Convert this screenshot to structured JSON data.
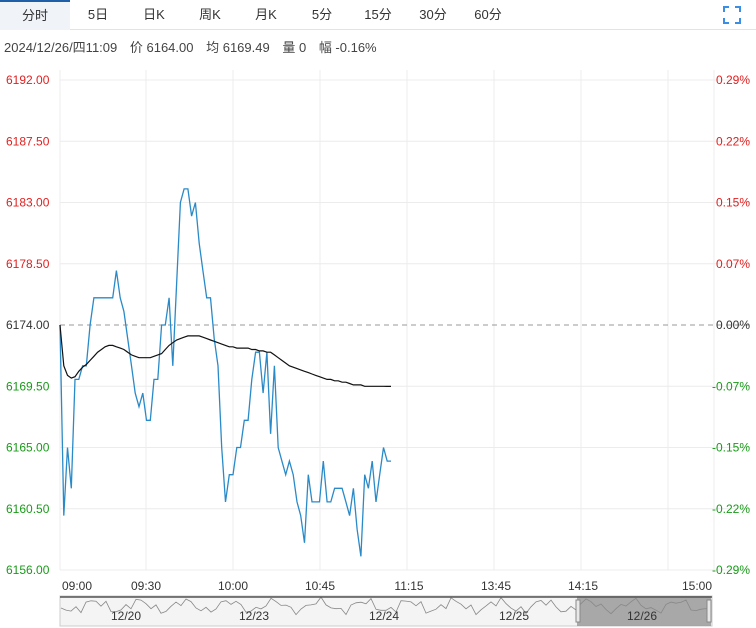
{
  "tabs": [
    {
      "label": "分时",
      "active": true
    },
    {
      "label": "5日"
    },
    {
      "label": "日K"
    },
    {
      "label": "周K"
    },
    {
      "label": "月K"
    },
    {
      "label": "5分"
    },
    {
      "label": "15分"
    },
    {
      "label": "30分"
    },
    {
      "label": "60分"
    }
  ],
  "fullscreen_icon": "fullscreen-icon",
  "info": {
    "datetime": "2024/12/26/四11:09",
    "price": "价 6164.00",
    "avg": "均 6169.49",
    "volume": "量 0",
    "change": "幅 -0.16%"
  },
  "colors": {
    "up": "#e02020",
    "down": "#1a9a1a",
    "price_line": "#2a8ac8",
    "avg_line": "#111111",
    "grid": "#ececec",
    "baseline": "#999999"
  },
  "chart_data": {
    "type": "line",
    "title": "",
    "ylim": [
      6156.0,
      6192.0
    ],
    "base_price": 6174.0,
    "yticks": [
      "6192.00",
      "6187.50",
      "6183.00",
      "6178.50",
      "6174.00",
      "6169.50",
      "6165.00",
      "6160.50",
      "6156.00"
    ],
    "yticks_pct": [
      "0.29%",
      "0.22%",
      "0.15%",
      "0.07%",
      "0.00%",
      "-0.07%",
      "-0.15%",
      "-0.22%",
      "-0.29%"
    ],
    "xticks": [
      "09:00",
      "09:30",
      "10:00",
      "10:45",
      "11:15",
      "13:45",
      "14:15",
      "15:00"
    ],
    "grid": true,
    "series": [
      {
        "key": "price",
        "values": [
          6174,
          6160,
          6165,
          6162,
          6170,
          6170,
          6171,
          6171,
          6174,
          6176,
          6176,
          6176,
          6176,
          6176,
          6176,
          6178,
          6176,
          6175,
          6173,
          6171,
          6169,
          6168,
          6169,
          6167,
          6167,
          6170,
          6170,
          6174,
          6174,
          6176,
          6171,
          6177,
          6183,
          6184,
          6184,
          6182,
          6183,
          6180,
          6178,
          6176,
          6176,
          6173,
          6171,
          6165,
          6161,
          6163,
          6163,
          6165,
          6165,
          6167,
          6167,
          6170,
          6172,
          6172,
          6169,
          6172,
          6166,
          6171,
          6165,
          6164,
          6163,
          6164,
          6163,
          6161,
          6160,
          6158,
          6163,
          6161,
          6161,
          6161,
          6164,
          6161,
          6161,
          6162,
          6162,
          6162,
          6161,
          6160,
          6162,
          6159,
          6157,
          6163,
          6162,
          6164,
          6161,
          6163,
          6165,
          6164,
          6164
        ]
      },
      {
        "key": "avg",
        "values": [
          6174,
          6171,
          6170.3,
          6170.1,
          6170.2,
          6170.6,
          6170.9,
          6171.1,
          6171.4,
          6171.7,
          6172,
          6172.2,
          6172.4,
          6172.5,
          6172.5,
          6172.4,
          6172.3,
          6172.2,
          6172,
          6171.8,
          6171.7,
          6171.6,
          6171.6,
          6171.6,
          6171.6,
          6171.7,
          6171.8,
          6171.9,
          6172.2,
          6172.5,
          6172.7,
          6172.9,
          6173,
          6173.1,
          6173.2,
          6173.2,
          6173.2,
          6173.2,
          6173.1,
          6173,
          6172.9,
          6172.8,
          6172.7,
          6172.6,
          6172.5,
          6172.4,
          6172.4,
          6172.3,
          6172.3,
          6172.3,
          6172.3,
          6172.2,
          6172.2,
          6172.1,
          6172.1,
          6172,
          6172,
          6171.8,
          6171.6,
          6171.4,
          6171.2,
          6171,
          6170.9,
          6170.8,
          6170.7,
          6170.6,
          6170.5,
          6170.4,
          6170.3,
          6170.2,
          6170.1,
          6170,
          6170,
          6169.9,
          6169.9,
          6169.8,
          6169.8,
          6169.7,
          6169.6,
          6169.6,
          6169.6,
          6169.5,
          6169.5,
          6169.5,
          6169.5,
          6169.5,
          6169.5,
          6169.49,
          6169.49
        ]
      }
    ]
  },
  "navigator": {
    "dates": [
      "12/20",
      "12/23",
      "12/24",
      "12/25",
      "12/26"
    ],
    "selected": "12/26"
  }
}
